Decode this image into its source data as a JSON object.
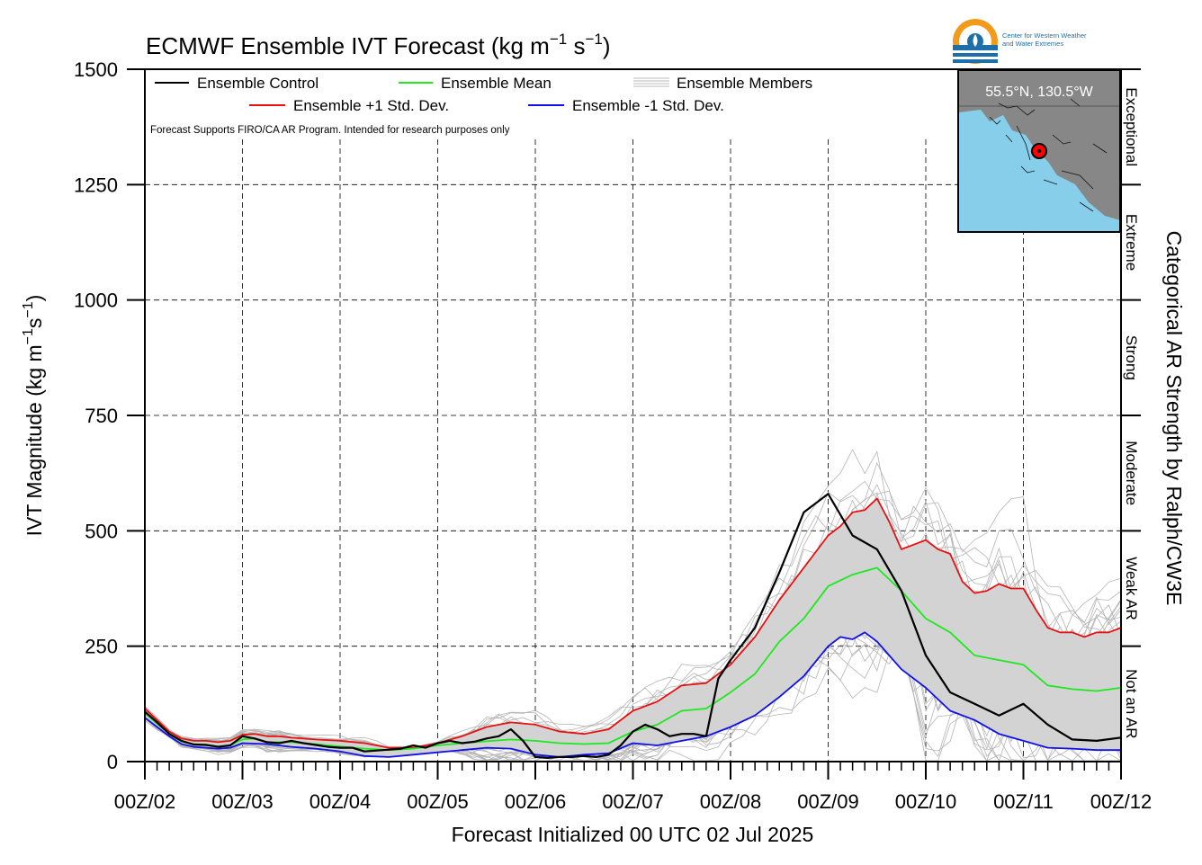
{
  "chart_data": {
    "type": "line",
    "title_main": "ECMWF Ensemble IVT Forecast (kg m",
    "title_exp1": "−1",
    "title_mid": " s",
    "title_exp2": "−1",
    "title_end": ")",
    "ylabel_main": "IVT Magnitude (kg m",
    "ylabel_exp1": "−1",
    "ylabel_mid": "s",
    "ylabel_exp2": "−1",
    "ylabel_end": ")",
    "xlabel": "Forecast Initialized 00 UTC 02 Jul 2025",
    "right_label": "Categorical AR Strength by Ralph/CW3E",
    "note": "Forecast Supports FIRO/CA AR Program. Intended for research purposes only",
    "logo_text_line1": "Center for Western Weather",
    "logo_text_line2": "and Water Extremes",
    "inset_location": "55.5°N, 130.5°W",
    "ylim": [
      0,
      1500
    ],
    "y_ticks": [
      0,
      250,
      500,
      750,
      1000,
      1250,
      1500
    ],
    "x_range_days": [
      2,
      12
    ],
    "x_tick_labels": [
      "00Z/02",
      "00Z/03",
      "00Z/04",
      "00Z/05",
      "00Z/06",
      "00Z/07",
      "00Z/08",
      "00Z/09",
      "00Z/10",
      "00Z/11",
      "00Z/12"
    ],
    "grid": true,
    "legend": [
      {
        "label": "Ensemble Control",
        "color": "#000000"
      },
      {
        "label": "Ensemble Mean",
        "color": "#1ee81e"
      },
      {
        "label": "Ensemble Members",
        "color": "#bbbbbb"
      },
      {
        "label": "Ensemble +1 Std. Dev.",
        "color": "#e81010"
      },
      {
        "label": "Ensemble -1 Std. Dev.",
        "color": "#1010e8"
      }
    ],
    "categories": [
      {
        "label": "Not an AR",
        "range": [
          0,
          250
        ]
      },
      {
        "label": "Weak AR",
        "range": [
          250,
          500
        ]
      },
      {
        "label": "Moderate",
        "range": [
          500,
          750
        ]
      },
      {
        "label": "Strong",
        "range": [
          750,
          1000
        ]
      },
      {
        "label": "Extreme",
        "range": [
          1000,
          1250
        ]
      },
      {
        "label": "Exceptional",
        "range": [
          1250,
          1500
        ]
      }
    ],
    "series": [
      {
        "name": "Ensemble Control",
        "color": "#000000",
        "x": [
          2.0,
          2.125,
          2.25,
          2.375,
          2.5,
          2.625,
          2.75,
          2.875,
          3.0,
          3.125,
          3.25,
          3.375,
          3.5,
          3.625,
          3.75,
          3.875,
          4.0,
          4.125,
          4.25,
          4.375,
          4.5,
          4.625,
          4.75,
          4.875,
          5.0,
          5.125,
          5.25,
          5.375,
          5.5,
          5.625,
          5.75,
          5.875,
          6.0,
          6.125,
          6.25,
          6.375,
          6.5,
          6.625,
          6.75,
          6.875,
          7.0,
          7.125,
          7.25,
          7.375,
          7.5,
          7.625,
          7.75,
          7.875,
          8.0,
          8.25,
          8.5,
          8.75,
          9.0,
          9.25,
          9.5,
          9.75,
          10.0,
          10.25,
          10.5,
          10.75,
          11.0,
          11.25,
          11.5,
          11.75,
          12.0
        ],
        "y": [
          108,
          85,
          60,
          45,
          37,
          36,
          32,
          35,
          55,
          50,
          42,
          40,
          45,
          40,
          36,
          32,
          30,
          30,
          22,
          24,
          26,
          28,
          35,
          30,
          40,
          45,
          40,
          43,
          50,
          55,
          70,
          45,
          10,
          8,
          10,
          10,
          12,
          10,
          15,
          35,
          65,
          80,
          70,
          55,
          60,
          60,
          55,
          180,
          220,
          290,
          410,
          540,
          580,
          490,
          460,
          370,
          230,
          150,
          125,
          100,
          125,
          80,
          48,
          45,
          52
        ]
      },
      {
        "name": "Ensemble Mean",
        "color": "#1ee81e",
        "x": [
          2.0,
          2.125,
          2.25,
          2.375,
          2.5,
          2.625,
          2.75,
          2.875,
          3.0,
          3.125,
          3.25,
          3.375,
          3.5,
          3.625,
          3.75,
          3.875,
          4.0,
          4.25,
          4.5,
          4.75,
          5.0,
          5.25,
          5.5,
          5.75,
          6.0,
          6.25,
          6.5,
          6.75,
          7.0,
          7.25,
          7.5,
          7.75,
          8.0,
          8.25,
          8.5,
          8.75,
          9.0,
          9.25,
          9.5,
          9.75,
          10.0,
          10.25,
          10.5,
          10.75,
          11.0,
          11.25,
          11.5,
          11.75,
          12.0
        ],
        "y": [
          105,
          82,
          60,
          43,
          38,
          37,
          33,
          36,
          48,
          50,
          42,
          42,
          42,
          40,
          38,
          35,
          33,
          28,
          25,
          28,
          35,
          40,
          44,
          48,
          45,
          40,
          38,
          40,
          65,
          80,
          110,
          115,
          150,
          190,
          260,
          310,
          380,
          405,
          420,
          370,
          310,
          280,
          230,
          220,
          210,
          165,
          157,
          153,
          160
        ]
      },
      {
        "name": "Ensemble +1 Std. Dev.",
        "color": "#e81010",
        "x": [
          2.0,
          2.125,
          2.25,
          2.375,
          2.5,
          2.625,
          2.75,
          2.875,
          3.0,
          3.125,
          3.25,
          3.375,
          3.5,
          3.75,
          4.0,
          4.25,
          4.5,
          4.75,
          5.0,
          5.25,
          5.5,
          5.75,
          6.0,
          6.25,
          6.5,
          6.75,
          7.0,
          7.25,
          7.5,
          7.75,
          8.0,
          8.25,
          8.5,
          8.75,
          9.0,
          9.125,
          9.25,
          9.375,
          9.5,
          9.625,
          9.75,
          10.0,
          10.125,
          10.25,
          10.375,
          10.5,
          10.625,
          10.75,
          10.875,
          11.0,
          11.125,
          11.25,
          11.375,
          11.5,
          11.625,
          11.75,
          11.875,
          12.0
        ],
        "y": [
          115,
          90,
          65,
          50,
          45,
          45,
          42,
          45,
          58,
          60,
          55,
          55,
          52,
          48,
          45,
          40,
          30,
          30,
          40,
          55,
          75,
          85,
          80,
          65,
          60,
          70,
          110,
          130,
          165,
          170,
          210,
          270,
          350,
          420,
          490,
          510,
          540,
          545,
          570,
          520,
          460,
          480,
          460,
          450,
          390,
          365,
          370,
          385,
          375,
          375,
          330,
          290,
          280,
          280,
          270,
          280,
          280,
          290
        ]
      },
      {
        "name": "Ensemble -1 Std. Dev.",
        "color": "#1010e8",
        "x": [
          2.0,
          2.125,
          2.25,
          2.375,
          2.5,
          2.625,
          2.75,
          2.875,
          3.0,
          3.25,
          3.5,
          3.75,
          4.0,
          4.25,
          4.5,
          4.75,
          5.0,
          5.25,
          5.5,
          5.75,
          6.0,
          6.25,
          6.5,
          6.75,
          7.0,
          7.25,
          7.5,
          7.75,
          8.0,
          8.25,
          8.5,
          8.75,
          9.0,
          9.125,
          9.25,
          9.375,
          9.5,
          9.75,
          10.0,
          10.25,
          10.5,
          10.75,
          11.0,
          11.25,
          11.5,
          11.75,
          12.0
        ],
        "y": [
          95,
          75,
          55,
          38,
          32,
          30,
          28,
          30,
          40,
          38,
          32,
          28,
          22,
          12,
          10,
          15,
          20,
          25,
          30,
          28,
          15,
          10,
          15,
          18,
          40,
          35,
          45,
          55,
          75,
          100,
          140,
          185,
          250,
          270,
          265,
          280,
          260,
          200,
          160,
          110,
          90,
          60,
          45,
          30,
          28,
          25,
          25
        ]
      }
    ]
  }
}
